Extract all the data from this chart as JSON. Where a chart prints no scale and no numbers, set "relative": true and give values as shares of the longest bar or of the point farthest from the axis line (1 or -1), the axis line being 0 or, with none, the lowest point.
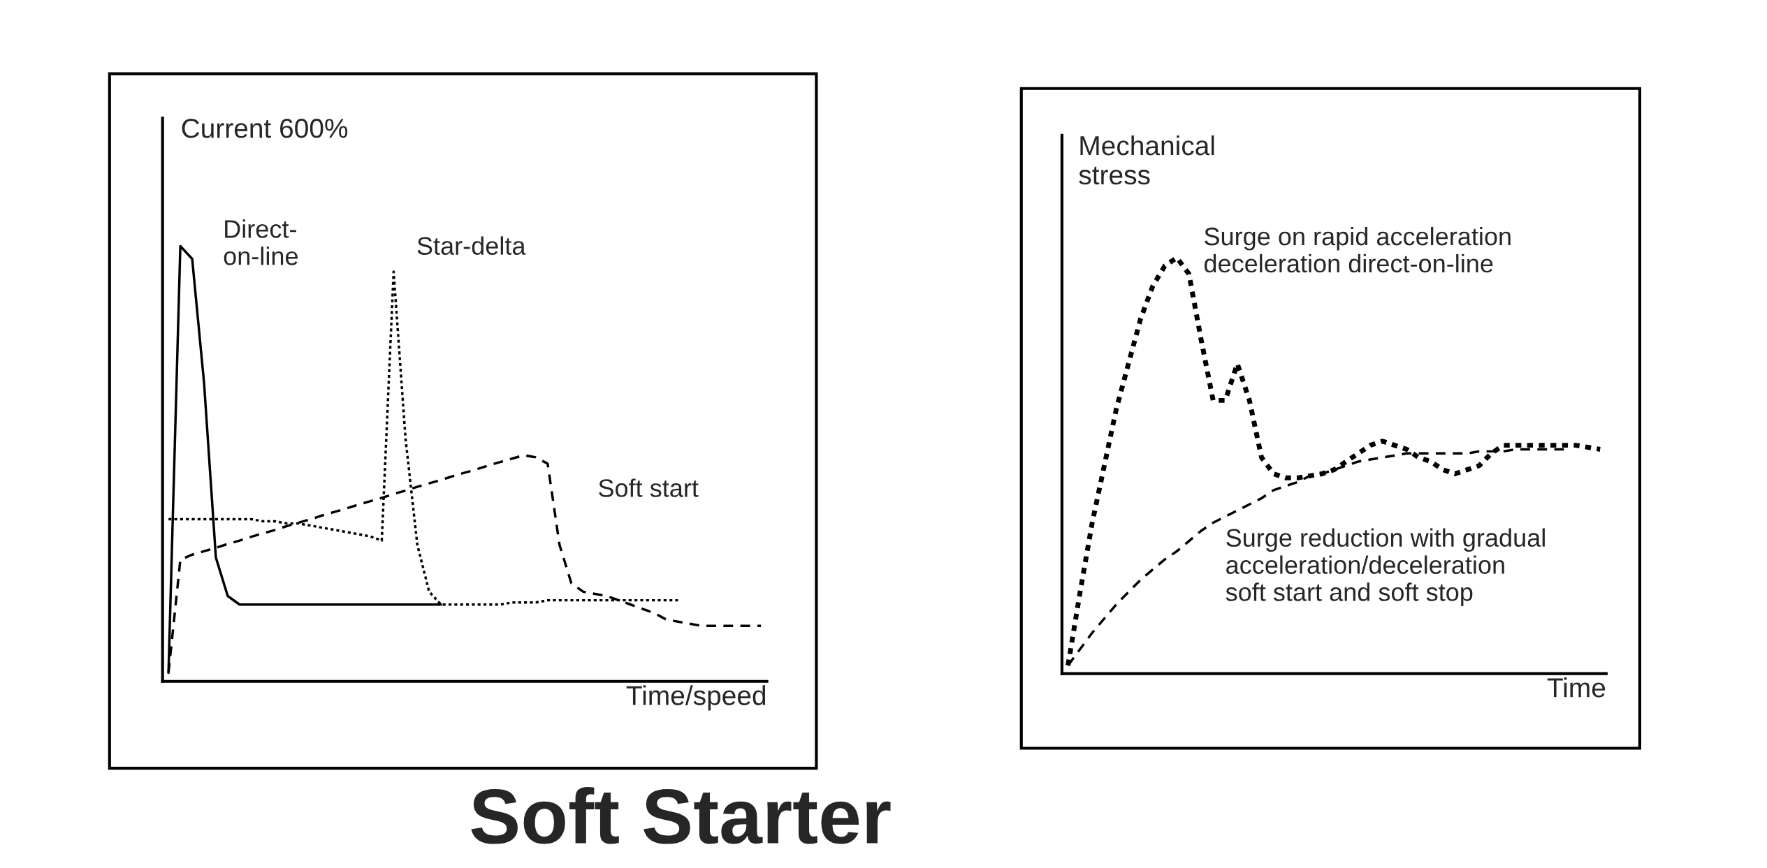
{
  "chart_data": [
    {
      "type": "line",
      "relative": true,
      "ylabel": "Current 600%",
      "xlabel": "Time/speed",
      "annotations": [
        "Soft Starter"
      ],
      "categories": [
        null,
        null,
        null,
        null,
        null,
        null,
        null,
        null,
        null,
        null,
        null,
        null,
        null,
        null,
        null,
        null,
        null,
        null,
        null,
        null,
        null,
        null,
        null,
        null,
        null,
        null,
        null,
        null,
        null,
        null,
        null,
        null,
        null,
        null,
        null,
        null,
        null,
        null,
        null,
        null,
        null,
        null,
        null,
        null,
        null,
        null,
        null,
        null,
        null,
        null,
        null
      ],
      "series": [
        {
          "name": "Direct-\non-line",
          "color": "#000000",
          "line_style": "solid",
          "values": [
            0,
            1.0,
            0.97,
            0.68,
            0.27,
            0.18,
            0.16,
            0.16,
            0.16,
            0.16,
            0.16,
            0.16,
            0.16,
            0.16,
            0.16,
            0.16,
            0.16,
            0.16,
            0.16,
            0.16,
            0.16,
            0.16,
            0.16,
            0.16,
            null,
            null,
            null,
            null,
            null,
            null,
            null,
            null,
            null,
            null,
            null,
            null,
            null,
            null,
            null,
            null,
            null,
            null,
            null,
            null,
            null,
            null,
            null,
            null,
            null,
            null,
            null
          ]
        },
        {
          "name": "Star-delta",
          "color": "#000000",
          "line_style": "dotted",
          "values": [
            0.36,
            0.36,
            0.36,
            0.36,
            0.36,
            0.36,
            0.36,
            0.36,
            0.355,
            0.355,
            0.35,
            0.35,
            0.345,
            0.34,
            0.335,
            0.33,
            0.325,
            0.32,
            0.31,
            0.94,
            0.55,
            0.3,
            0.19,
            0.16,
            0.16,
            0.16,
            0.16,
            0.16,
            0.16,
            0.165,
            0.165,
            0.165,
            0.17,
            0.17,
            0.17,
            0.17,
            0.17,
            0.17,
            0.17,
            0.17,
            0.17,
            0.17,
            0.17,
            0.17,
            null,
            null,
            null,
            null,
            null,
            null,
            null
          ]
        },
        {
          "name": "Soft start",
          "color": "#000000",
          "line_style": "dashed",
          "values": [
            0,
            0.265,
            0.277,
            0.285,
            0.293,
            0.302,
            0.31,
            0.319,
            0.327,
            0.335,
            0.344,
            0.352,
            0.36,
            0.369,
            0.377,
            0.385,
            0.394,
            0.402,
            0.41,
            0.419,
            0.427,
            0.436,
            0.444,
            0.452,
            0.461,
            0.469,
            0.477,
            0.486,
            0.494,
            0.502,
            0.51,
            0.505,
            0.49,
            0.3,
            0.21,
            0.19,
            0.185,
            0.18,
            0.17,
            0.16,
            0.15,
            0.14,
            0.125,
            0.12,
            0.115,
            0.11,
            0.11,
            0.11,
            0.11,
            0.11,
            0.11
          ]
        }
      ]
    },
    {
      "type": "line",
      "relative": true,
      "ylabel": "Mechanical\nstress",
      "xlabel": "Time",
      "categories": [
        null,
        null,
        null,
        null,
        null,
        null,
        null,
        null,
        null,
        null,
        null,
        null,
        null,
        null,
        null,
        null,
        null,
        null,
        null,
        null,
        null,
        null,
        null,
        null,
        null,
        null,
        null,
        null,
        null,
        null,
        null,
        null,
        null,
        null,
        null,
        null,
        null,
        null,
        null,
        null,
        null,
        null,
        null,
        null,
        null
      ],
      "series": [
        {
          "name": "Surge on rapid acceleration\ndeceleration direct-on-line",
          "color": "#000000",
          "line_style": "dotted",
          "values": [
            0,
            0.18,
            0.35,
            0.49,
            0.63,
            0.74,
            0.85,
            0.93,
            0.98,
            1.0,
            0.96,
            0.8,
            0.65,
            0.65,
            0.74,
            0.65,
            0.51,
            0.47,
            0.46,
            0.46,
            0.465,
            0.47,
            0.48,
            0.5,
            0.52,
            0.54,
            0.55,
            0.54,
            0.53,
            0.51,
            0.5,
            0.48,
            0.47,
            0.48,
            0.49,
            0.52,
            0.54,
            0.54,
            0.54,
            0.54,
            0.54,
            0.54,
            0.54,
            0.535,
            0.53
          ]
        },
        {
          "name": "Surge reduction with gradual\nacceleration/deceleration\nsoft start and soft stop",
          "color": "#000000",
          "line_style": "dashed",
          "values": [
            0,
            0.04,
            0.08,
            0.115,
            0.15,
            0.18,
            0.21,
            0.235,
            0.26,
            0.28,
            0.305,
            0.33,
            0.35,
            0.365,
            0.38,
            0.395,
            0.41,
            0.43,
            0.44,
            0.45,
            0.465,
            0.47,
            0.48,
            0.49,
            0.5,
            0.505,
            0.51,
            0.515,
            0.52,
            0.52,
            0.52,
            0.52,
            0.52,
            0.52,
            0.525,
            0.525,
            0.525,
            0.53,
            0.53,
            0.53,
            0.53,
            0.53,
            null,
            null,
            null
          ]
        }
      ]
    }
  ]
}
